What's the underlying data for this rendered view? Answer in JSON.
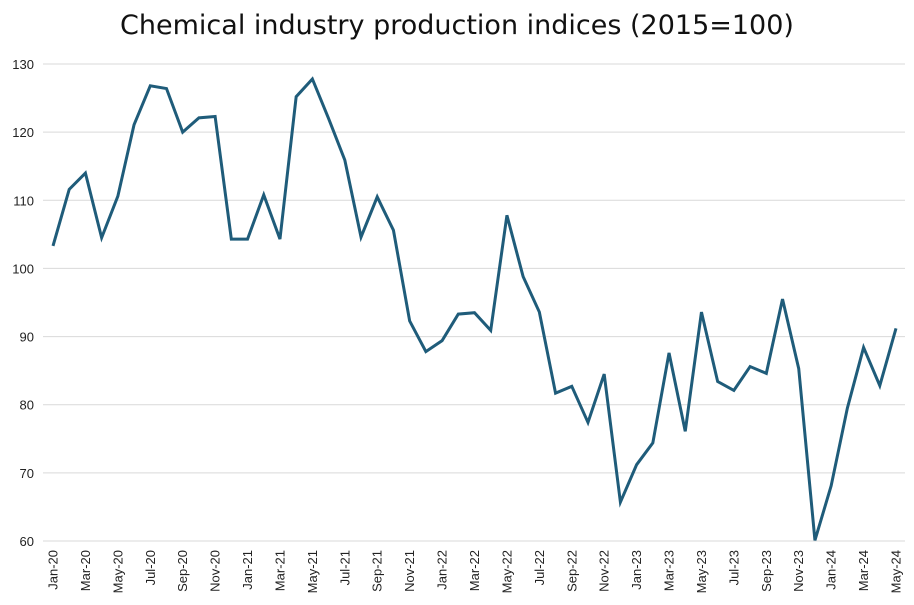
{
  "chart_data": {
    "type": "line",
    "title": "Chemical industry production indices (2015=100)",
    "xlabel": "",
    "ylabel": "",
    "ylim": [
      60,
      130
    ],
    "yticks": [
      60,
      70,
      80,
      90,
      100,
      110,
      120,
      130
    ],
    "grid": "horizontal",
    "line_color": "#1f5c7a",
    "x": [
      "Jan-20",
      "Feb-20",
      "Mar-20",
      "Apr-20",
      "May-20",
      "Jun-20",
      "Jul-20",
      "Aug-20",
      "Sep-20",
      "Oct-20",
      "Nov-20",
      "Dec-20",
      "Jan-21",
      "Feb-21",
      "Mar-21",
      "Apr-21",
      "May-21",
      "Jun-21",
      "Jul-21",
      "Aug-21",
      "Sep-21",
      "Oct-21",
      "Nov-21",
      "Dec-21",
      "Jan-22",
      "Feb-22",
      "Mar-22",
      "Apr-22",
      "May-22",
      "Jun-22",
      "Jul-22",
      "Aug-22",
      "Sep-22",
      "Oct-22",
      "Nov-22",
      "Dec-22",
      "Jan-23",
      "Feb-23",
      "Mar-23",
      "Apr-23",
      "May-23",
      "Jun-23",
      "Jul-23",
      "Aug-23",
      "Sep-23",
      "Oct-23",
      "Nov-23",
      "Dec-23",
      "Jan-24",
      "Feb-24",
      "Mar-24",
      "Apr-24",
      "May-24"
    ],
    "xtick_labels": [
      "Jan-20",
      "Mar-20",
      "May-20",
      "Jul-20",
      "Sep-20",
      "Nov-20",
      "Jan-21",
      "Mar-21",
      "May-21",
      "Jul-21",
      "Sep-21",
      "Nov-21",
      "Jan-22",
      "Mar-22",
      "May-22",
      "Jul-22",
      "Sep-22",
      "Nov-22",
      "Jan-23",
      "Mar-23",
      "May-23",
      "Jul-23",
      "Sep-23",
      "Nov-23",
      "Jan-24",
      "Mar-24",
      "May-24"
    ],
    "series": [
      {
        "values": [
          103.3,
          111.6,
          114.0,
          104.5,
          110.6,
          121.1,
          126.8,
          126.4,
          120.0,
          122.1,
          122.3,
          104.3,
          104.3,
          110.8,
          104.3,
          125.2,
          127.8,
          122.0,
          115.9,
          104.6,
          110.5,
          105.6,
          92.3,
          87.8,
          89.4,
          93.3,
          93.5,
          90.9,
          107.8,
          98.8,
          93.6,
          81.7,
          82.7,
          77.4,
          84.5,
          65.7,
          71.2,
          74.4,
          87.6,
          76.1,
          93.6,
          83.4,
          82.1,
          85.6,
          84.6,
          95.5,
          85.3,
          60.1,
          68.1,
          79.5,
          88.4,
          82.8,
          91.2
        ]
      }
    ]
  }
}
